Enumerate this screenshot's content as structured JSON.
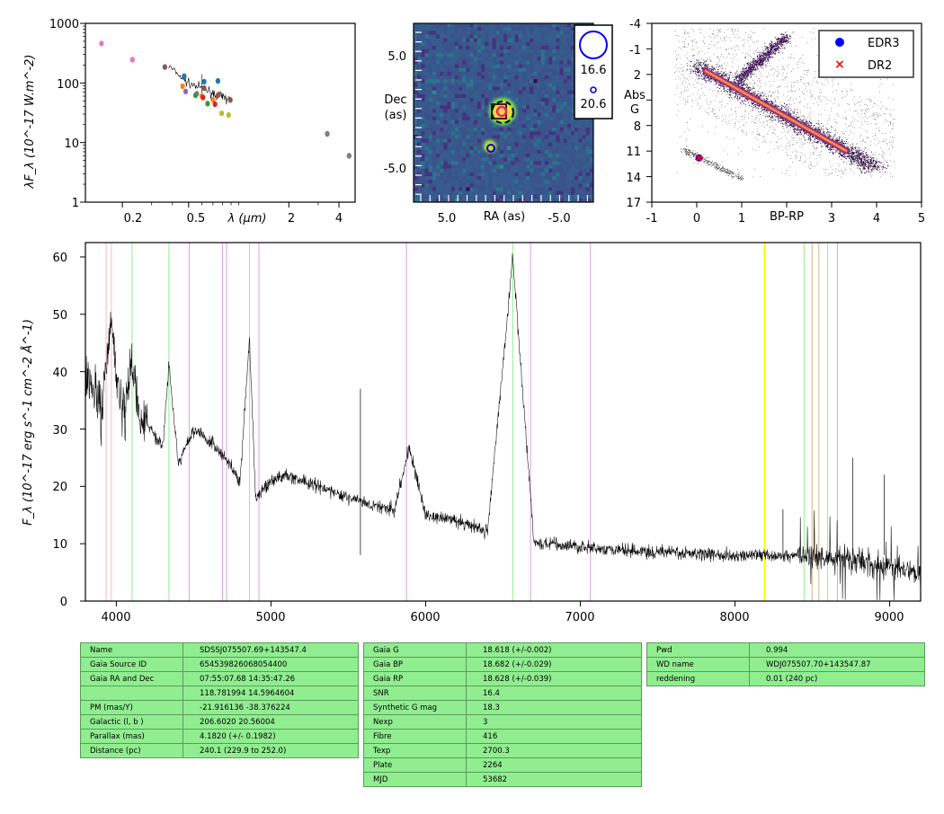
{
  "sed": {
    "ylabel": "λF_λ (10^-17 W.m^-2)",
    "xlabel": "λ (μm)",
    "yticks": [
      "1000",
      "100",
      "10",
      "1"
    ],
    "xticks": [
      "0.2",
      "0.5",
      "2",
      "4"
    ]
  },
  "image": {
    "xlabel": "RA (as)",
    "ylabel": "Dec (as)",
    "xticks": [
      "5.0",
      "-5.0"
    ],
    "yticks": [
      "5.0",
      "-5.0"
    ],
    "legend": [
      "16.6",
      "20.6"
    ]
  },
  "hr": {
    "xlabel": "BP-RP",
    "ylabel": "Abs G",
    "xticks": [
      "-1",
      "0",
      "1",
      "2",
      "3",
      "4",
      "5"
    ],
    "yticks": [
      "-4",
      "-1",
      "2",
      "5",
      "8",
      "11",
      "14",
      "17"
    ],
    "legend": [
      "EDR3",
      "DR2"
    ],
    "colors": {
      "edr3": "#0000ff",
      "dr2": "#ff0000"
    }
  },
  "spectrum": {
    "ylabel": "F_λ (10^-17 erg s^-1 cm^-2 Å^-1)",
    "xticks": [
      "4000",
      "5000",
      "6000",
      "7000",
      "8000",
      "9000"
    ],
    "yticks": [
      "0",
      "10",
      "20",
      "30",
      "40",
      "50",
      "60"
    ]
  },
  "table1": [
    [
      "Name",
      "SDSSJ075507.69+143547.4"
    ],
    [
      "Gaia Source ID",
      "654539826068054400"
    ],
    [
      "Gaia RA and Dec",
      "07:55:07.68    14:35:47.26"
    ],
    [
      "",
      "118.781994    14.5964604"
    ],
    [
      "PM (mas/Y)",
      "-21.916136    -38.376224"
    ],
    [
      "Galactic (l, b )",
      "206.6020    20.56004"
    ],
    [
      "Parallax (mas)",
      "4.1820 (+/- 0.1982)"
    ],
    [
      "Distance (pc)",
      "240.1 (229.9 to 252.0)"
    ]
  ],
  "table2": [
    [
      "Gaia G",
      "18.618 (+/-0.002)"
    ],
    [
      "Gaia BP",
      "18.682 (+/-0.029)"
    ],
    [
      "Gaia RP",
      "18.628 (+/-0.039)"
    ],
    [
      "SNR",
      "16.4"
    ],
    [
      "Synthetic G mag",
      "18.3"
    ],
    [
      "Nexp",
      "3"
    ],
    [
      "Fibre",
      "416"
    ],
    [
      "Texp",
      "2700.3"
    ],
    [
      "Plate",
      "2264"
    ],
    [
      "MJD",
      "53682"
    ]
  ],
  "table3": [
    [
      "Pwd",
      "0.994"
    ],
    [
      "WD name",
      "WDJ075507.70+143547.87"
    ],
    [
      "reddening",
      "0.01 (240 pc)"
    ]
  ],
  "chart_data": [
    {
      "type": "scatter",
      "xlabel": "λ (μm)",
      "ylabel": "λF_λ (10^-17 W.m^-2)",
      "xscale": "log",
      "yscale": "log",
      "xlim": [
        0.12,
        5
      ],
      "ylim": [
        1,
        1000
      ],
      "series": [
        {
          "color": "#e377c2",
          "points": [
            [
              0.15,
              460
            ],
            [
              0.23,
              245
            ]
          ]
        },
        {
          "color": "#8c564b",
          "points": [
            [
              0.36,
              185
            ],
            [
              0.47,
              125
            ],
            [
              0.62,
              82
            ],
            [
              0.75,
              62
            ],
            [
              0.89,
              52
            ],
            [
              3.4,
              14
            ],
            [
              4.6,
              6
            ]
          ]
        },
        {
          "color": "#1f77b4",
          "points": [
            [
              0.47,
              130
            ],
            [
              0.62,
              105
            ],
            [
              0.75,
              108
            ]
          ]
        },
        {
          "color": "#9467bd",
          "points": [
            [
              0.48,
              72
            ],
            [
              0.56,
              66
            ]
          ]
        },
        {
          "color": "#ff7f0e",
          "points": [
            [
              0.46,
              88
            ],
            [
              0.6,
              60
            ],
            [
              0.7,
              52
            ]
          ]
        },
        {
          "color": "#2ca02c",
          "points": [
            [
              0.55,
              62
            ],
            [
              0.65,
              45
            ]
          ]
        },
        {
          "color": "#d62728",
          "points": [
            [
              0.61,
              57
            ],
            [
              0.72,
              44
            ]
          ]
        },
        {
          "color": "#bcbd22",
          "points": [
            [
              0.79,
              31
            ],
            [
              0.87,
              29
            ]
          ]
        },
        {
          "color": "#7f7f7f",
          "points": [
            [
              3.4,
              14
            ],
            [
              4.6,
              6
            ]
          ]
        }
      ],
      "spectrum_overlay": [
        [
          0.38,
          190
        ],
        [
          0.42,
          150
        ],
        [
          0.46,
          120
        ],
        [
          0.5,
          100
        ],
        [
          0.55,
          90
        ],
        [
          0.6,
          82
        ],
        [
          0.65,
          75
        ],
        [
          0.7,
          68
        ],
        [
          0.75,
          62
        ],
        [
          0.8,
          58
        ],
        [
          0.85,
          55
        ],
        [
          0.9,
          52
        ]
      ]
    },
    {
      "type": "heatmap",
      "xlabel": "RA (as)",
      "ylabel": "Dec (as)",
      "xlim": [
        10,
        -10
      ],
      "ylim": [
        -10,
        10
      ],
      "sources": [
        {
          "label": "16.6",
          "ra": -0.6,
          "dec": 0.3
        },
        {
          "label": "20.6",
          "ra": 2.6,
          "dec": -3.2
        }
      ]
    },
    {
      "type": "scatter",
      "xlabel": "BP-RP",
      "ylabel": "Abs G",
      "xlim": [
        -1,
        5
      ],
      "ylim": [
        17,
        -4
      ],
      "legend": [
        "EDR3",
        "DR2"
      ],
      "legend_loc": "top-right",
      "points": [
        {
          "name": "EDR3",
          "x": 0.05,
          "y": 11.8
        },
        {
          "name": "DR2",
          "x": 0.05,
          "y": 11.8
        }
      ]
    },
    {
      "type": "line",
      "xlabel": "",
      "ylabel": "F_λ (10^-17 erg s^-1 cm^-2 Å^-1)",
      "xlim": [
        3800,
        9200
      ],
      "ylim": [
        0,
        62.5
      ],
      "x": [
        3800,
        3850,
        3900,
        3970,
        4000,
        4050,
        4100,
        4150,
        4200,
        4300,
        4340,
        4400,
        4500,
        4600,
        4700,
        4800,
        4861,
        4900,
        5000,
        5100,
        5200,
        5400,
        5600,
        5800,
        5893,
        6000,
        6200,
        6400,
        6563,
        6700,
        7000,
        7200,
        7500,
        8000,
        8500,
        8700,
        9000,
        9200
      ],
      "y": [
        40,
        37,
        33,
        49,
        38,
        33,
        42,
        32,
        31,
        27,
        41,
        24,
        30,
        28,
        25,
        21,
        46,
        18,
        21,
        22,
        21,
        19,
        17,
        16,
        27,
        15,
        14,
        12,
        60,
        10,
        9.5,
        9,
        8.5,
        8,
        8,
        7.5,
        6,
        5
      ],
      "lines": [
        {
          "x": 3934,
          "color": "#ffb6c1"
        },
        {
          "x": 3968,
          "color": "#ffb6c1"
        },
        {
          "x": 4102,
          "color": "#90ee90"
        },
        {
          "x": 4340,
          "color": "#90ee90"
        },
        {
          "x": 4471,
          "color": "#dda0dd"
        },
        {
          "x": 4686,
          "color": "#dda0dd"
        },
        {
          "x": 4713,
          "color": "#dda0dd"
        },
        {
          "x": 4861,
          "color": "#90ee90"
        },
        {
          "x": 4922,
          "color": "#dda0dd"
        },
        {
          "x": 5876,
          "color": "#dda0dd"
        },
        {
          "x": 6563,
          "color": "#90ee90"
        },
        {
          "x": 6678,
          "color": "#dda0dd"
        },
        {
          "x": 7065,
          "color": "#dda0dd"
        },
        {
          "x": 8190,
          "color": "#ffff00"
        },
        {
          "x": 8446,
          "color": "#90ee90"
        },
        {
          "x": 8498,
          "color": "#d2b48c"
        },
        {
          "x": 8542,
          "color": "#d2b48c"
        },
        {
          "x": 8598,
          "color": "#90ee90"
        },
        {
          "x": 8662,
          "color": "#d2b48c"
        }
      ]
    }
  ]
}
